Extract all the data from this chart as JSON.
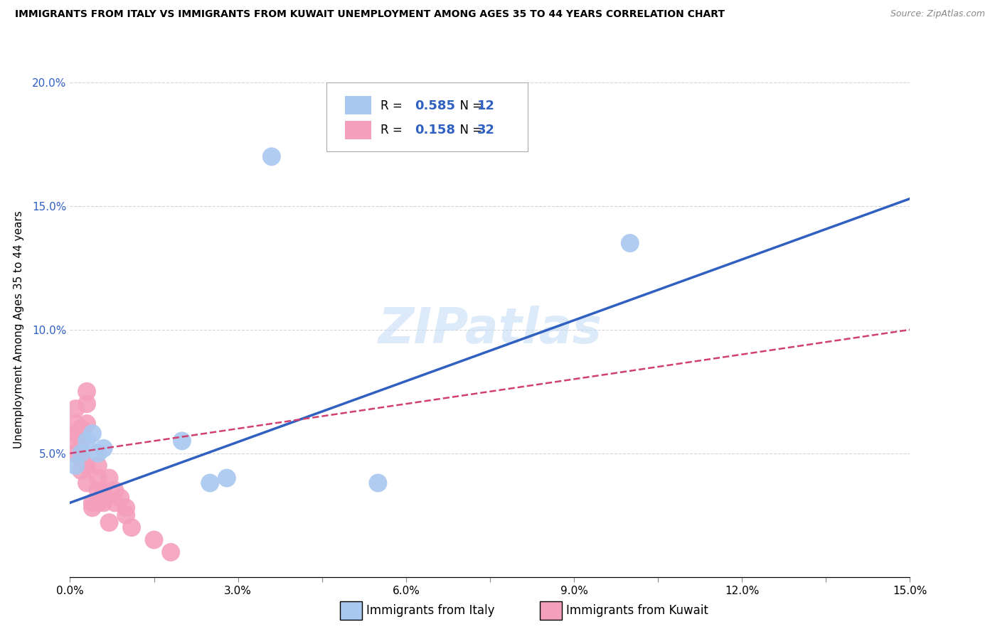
{
  "title": "IMMIGRANTS FROM ITALY VS IMMIGRANTS FROM KUWAIT UNEMPLOYMENT AMONG AGES 35 TO 44 YEARS CORRELATION CHART",
  "source": "Source: ZipAtlas.com",
  "ylabel": "Unemployment Among Ages 35 to 44 years",
  "xlim": [
    0,
    0.15
  ],
  "ylim": [
    0,
    0.2
  ],
  "xticks": [
    0.0,
    0.015,
    0.03,
    0.045,
    0.06,
    0.075,
    0.09,
    0.105,
    0.12,
    0.135,
    0.15
  ],
  "xtick_labels": [
    "0.0%",
    "",
    "3.0%",
    "",
    "6.0%",
    "",
    "9.0%",
    "",
    "12.0%",
    "",
    "15.0%"
  ],
  "yticks": [
    0.0,
    0.05,
    0.1,
    0.15,
    0.2
  ],
  "ytick_labels": [
    "",
    "5.0%",
    "10.0%",
    "15.0%",
    "20.0%"
  ],
  "italy_color": "#A8C8F0",
  "kuwait_color": "#F4A0BC",
  "italy_line_color": "#3060C0",
  "kuwait_line_color": "#D04070",
  "tick_label_color": "#3060C0",
  "italy_R": 0.585,
  "italy_N": 12,
  "kuwait_R": 0.158,
  "kuwait_N": 32,
  "italy_x": [
    0.001,
    0.002,
    0.003,
    0.004,
    0.005,
    0.006,
    0.02,
    0.025,
    0.028,
    0.055,
    0.1,
    0.036
  ],
  "italy_y": [
    0.045,
    0.05,
    0.055,
    0.058,
    0.05,
    0.052,
    0.055,
    0.038,
    0.04,
    0.038,
    0.135,
    0.17
  ],
  "kuwait_x": [
    0.001,
    0.001,
    0.001,
    0.001,
    0.001,
    0.002,
    0.002,
    0.002,
    0.002,
    0.003,
    0.003,
    0.003,
    0.003,
    0.003,
    0.004,
    0.004,
    0.005,
    0.005,
    0.005,
    0.005,
    0.006,
    0.006,
    0.007,
    0.007,
    0.008,
    0.008,
    0.009,
    0.01,
    0.01,
    0.011,
    0.015,
    0.018
  ],
  "kuwait_y": [
    0.068,
    0.062,
    0.058,
    0.055,
    0.05,
    0.06,
    0.055,
    0.048,
    0.043,
    0.075,
    0.07,
    0.062,
    0.045,
    0.038,
    0.03,
    0.028,
    0.045,
    0.04,
    0.035,
    0.03,
    0.035,
    0.03,
    0.04,
    0.022,
    0.035,
    0.03,
    0.032,
    0.028,
    0.025,
    0.02,
    0.015,
    0.01
  ],
  "italy_line_x0": 0.0,
  "italy_line_y0": 0.03,
  "italy_line_x1": 0.15,
  "italy_line_y1": 0.153,
  "kuwait_line_x0": 0.0,
  "kuwait_line_y0": 0.05,
  "kuwait_line_x1": 0.15,
  "kuwait_line_y1": 0.1,
  "watermark": "ZIPatlas",
  "legend_italy_label": "Immigrants from Italy",
  "legend_kuwait_label": "Immigrants from Kuwait",
  "background_color": "#FFFFFF",
  "grid_color": "#CCCCCC"
}
